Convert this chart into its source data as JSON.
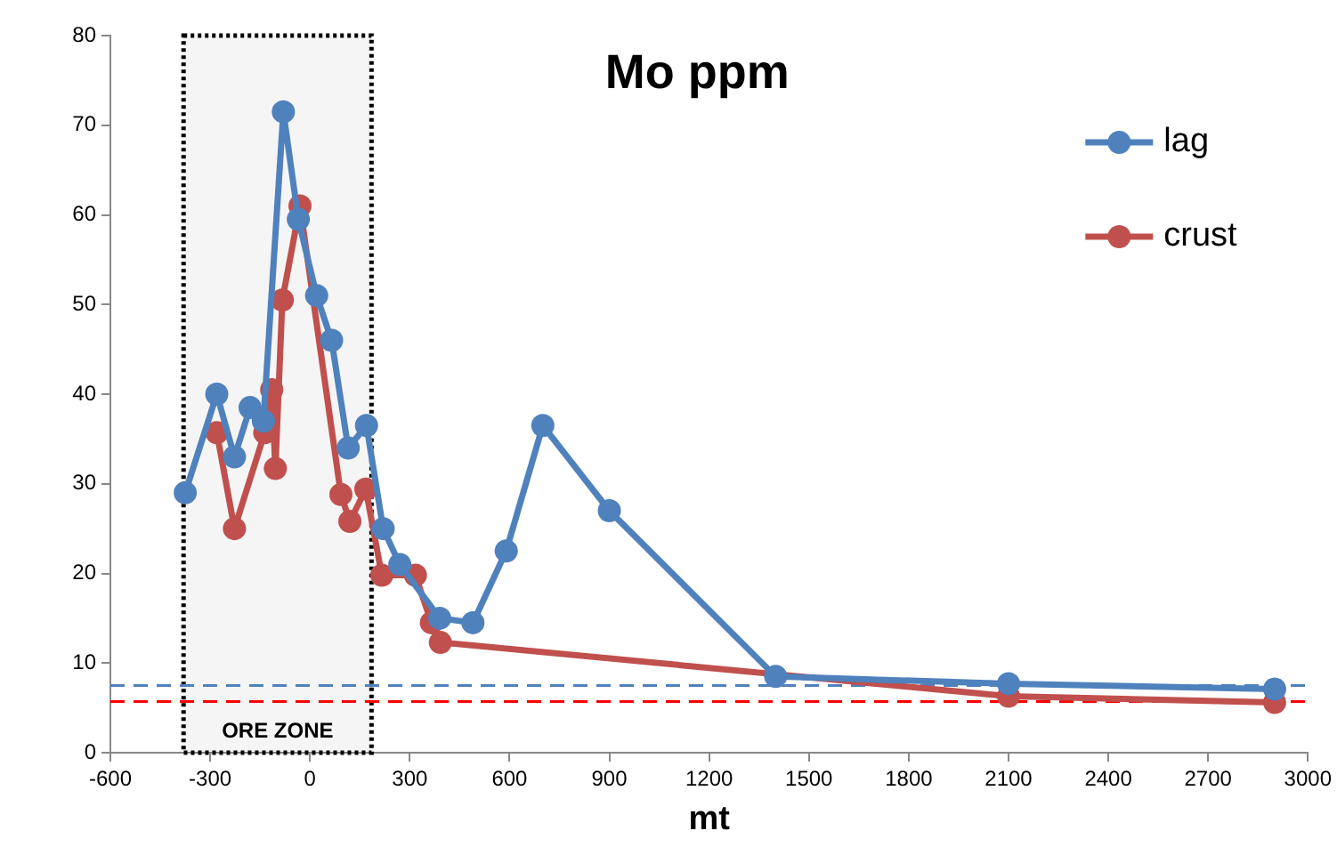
{
  "chart_data": {
    "type": "line",
    "title": "Mo ppm",
    "xlabel": "mt",
    "xlim": [
      -600,
      3000
    ],
    "xticks": [
      -600,
      -300,
      0,
      300,
      600,
      900,
      1200,
      1500,
      1800,
      2100,
      2400,
      2700,
      3000
    ],
    "ylim": [
      0,
      80
    ],
    "yticks": [
      0,
      10,
      20,
      30,
      40,
      50,
      60,
      70,
      80
    ],
    "grid": false,
    "legend": "top right",
    "marker": "circle",
    "line_style": "solid",
    "series": [
      {
        "name": "lag",
        "color": "#4f81bd",
        "x": [
          -375,
          -280,
          -227,
          -180,
          -140,
          -80,
          -35,
          20,
          65,
          115,
          170,
          220,
          270,
          390,
          490,
          590,
          700,
          900,
          1400,
          2100,
          2900
        ],
        "values": [
          29,
          40,
          33,
          38.5,
          37,
          71.5,
          59.5,
          51,
          46,
          34,
          36.5,
          25,
          21,
          15,
          14.5,
          22.5,
          36.5,
          27,
          8.5,
          7.7,
          7.1
        ]
      },
      {
        "name": "crust",
        "color": "#c0504d",
        "x": [
          -280,
          -227,
          -136,
          -115,
          -104,
          -83,
          -30,
          93,
          120,
          168,
          216,
          317,
          365,
          392,
          2100,
          2900
        ],
        "values": [
          35.7,
          25,
          35.7,
          40.5,
          31.7,
          50.5,
          61,
          28.8,
          25.8,
          29.4,
          19.8,
          19.8,
          14.5,
          12.3,
          6.3,
          5.6
        ]
      }
    ],
    "ref_lines": [
      {
        "axis": "y",
        "value": 7.5,
        "color": "#4f81bd",
        "line_style": "dashed"
      },
      {
        "axis": "y",
        "value": 5.7,
        "color": "#ff0000",
        "line_style": "dashed"
      }
    ],
    "bands": [
      {
        "axis": "x",
        "from": -380,
        "to": 185,
        "label": "ORE ZONE",
        "color": "#000000"
      }
    ]
  }
}
